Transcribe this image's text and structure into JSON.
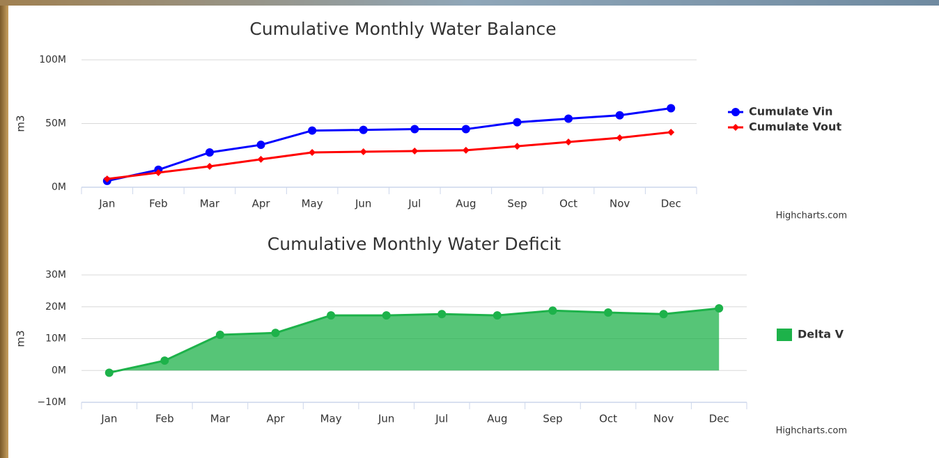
{
  "chart_data": [
    {
      "type": "line",
      "title": "Cumulative Monthly Water Balance",
      "y_label": "m3",
      "credits": "Highcharts.com",
      "categories": [
        "Jan",
        "Feb",
        "Mar",
        "Apr",
        "May",
        "Jun",
        "Jul",
        "Aug",
        "Sep",
        "Oct",
        "Nov",
        "Dec"
      ],
      "series": [
        {
          "name": "Cumulate Vin",
          "color": "#0000ff",
          "marker": "circle",
          "values": [
            5,
            13.7,
            27.3,
            33.3,
            44.5,
            45,
            45.6,
            45.6,
            51,
            53.8,
            56.5,
            62
          ]
        },
        {
          "name": "Cumulate Vout",
          "color": "#ff0000",
          "marker": "diamond",
          "values": [
            6.5,
            11.5,
            16.4,
            21.9,
            27.3,
            27.9,
            28.4,
            29,
            32.2,
            35.5,
            38.8,
            43.2
          ]
        }
      ],
      "ylim": [
        0,
        100
      ],
      "yticks": [
        {
          "value": 0,
          "label": "0M"
        },
        {
          "value": 50,
          "label": "50M"
        },
        {
          "value": 100,
          "label": "100M"
        }
      ],
      "grid": true,
      "legend": "right"
    },
    {
      "type": "area",
      "title": "Cumulative Monthly Water Deficit",
      "y_label": "m3",
      "credits": "Highcharts.com",
      "categories": [
        "Jan",
        "Feb",
        "Mar",
        "Apr",
        "May",
        "Jun",
        "Jul",
        "Aug",
        "Sep",
        "Oct",
        "Nov",
        "Dec"
      ],
      "series": [
        {
          "name": "Delta V",
          "color": "#1db24a",
          "marker": "circle",
          "values": [
            -0.7,
            3.1,
            11.2,
            11.8,
            17.3,
            17.3,
            17.7,
            17.3,
            18.8,
            18.2,
            17.7,
            19.5
          ]
        }
      ],
      "ylim": [
        -10,
        30
      ],
      "yticks": [
        {
          "value": -10,
          "label": "−10M"
        },
        {
          "value": 0,
          "label": "0M"
        },
        {
          "value": 10,
          "label": "10M"
        },
        {
          "value": 20,
          "label": "20M"
        },
        {
          "value": 30,
          "label": "30M"
        }
      ],
      "grid": true,
      "legend": "right"
    }
  ]
}
